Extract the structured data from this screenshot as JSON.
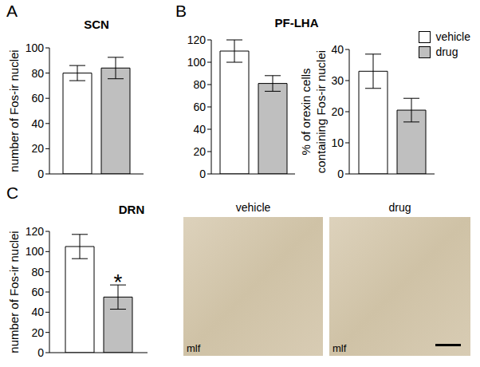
{
  "chart_data": [
    {
      "type": "bar",
      "panel": "A",
      "title": "SCN",
      "y_label": [
        "number of Fos-ir nuclei"
      ],
      "categories": [
        null
      ],
      "tick_labels": "y",
      "series": [
        {
          "name": "vehicle",
          "color": "#ffffff",
          "values": [
            80
          ],
          "error": [
            6
          ]
        },
        {
          "name": "drug",
          "color": "#bfbfbf",
          "values": [
            84
          ],
          "error": [
            8.5
          ]
        }
      ],
      "ylim": [
        0,
        100
      ],
      "yticks": [
        0,
        20,
        40,
        60,
        80,
        100
      ]
    },
    {
      "type": "bar",
      "panel": "B",
      "title": "PF-LHA",
      "categories": [
        null
      ],
      "tick_labels": "y",
      "series": [
        {
          "name": "vehicle",
          "color": "#ffffff",
          "values": [
            110
          ],
          "error": [
            10
          ]
        },
        {
          "name": "drug",
          "color": "#bfbfbf",
          "values": [
            81
          ],
          "error": [
            7
          ]
        }
      ],
      "ylim": [
        0,
        120
      ],
      "yticks": [
        0,
        20,
        40,
        60,
        80,
        100,
        120
      ]
    },
    {
      "type": "bar",
      "y_label": [
        "% of orexin cells",
        "containing Fos-ir nuclei"
      ],
      "categories": [
        null
      ],
      "tick_labels": "y",
      "legend": "top-right",
      "series": [
        {
          "name": "vehicle",
          "color": "#ffffff",
          "values": [
            33
          ],
          "error": [
            5.5
          ]
        },
        {
          "name": "drug",
          "color": "#bfbfbf",
          "values": [
            20.5
          ],
          "error": [
            3.8
          ]
        }
      ],
      "ylim": [
        0,
        40
      ],
      "yticks": [
        0,
        10,
        20,
        30,
        40
      ]
    },
    {
      "type": "bar",
      "panel": "C",
      "title": "DRN",
      "y_label": [
        "number of Fos-ir nuclei"
      ],
      "categories": [
        null
      ],
      "tick_labels": "y",
      "series": [
        {
          "name": "vehicle",
          "color": "#ffffff",
          "values": [
            105
          ],
          "error": [
            12
          ]
        },
        {
          "name": "drug",
          "color": "#bfbfbf",
          "values": [
            55
          ],
          "error": [
            12
          ]
        }
      ],
      "ylim": [
        0,
        120
      ],
      "yticks": [
        0,
        20,
        40,
        60,
        80,
        100,
        120
      ],
      "annotations": [
        {
          "text": "*",
          "series": "drug",
          "category": 0
        }
      ]
    }
  ],
  "images": [
    {
      "title": "vehicle",
      "label": "mlf"
    },
    {
      "title": "drug",
      "label": "mlf"
    }
  ]
}
